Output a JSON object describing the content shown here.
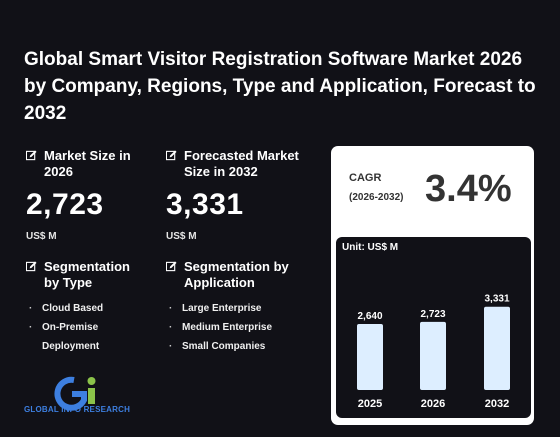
{
  "title": "Global Smart Visitor Registration Software Market 2026 by Company, Regions, Type and Application, Forecast to 2032",
  "market_size": {
    "label": "Market Size in 2026",
    "value": "2,723",
    "unit": "US$ M"
  },
  "forecast_size": {
    "label": "Forecasted Market Size in 2032",
    "value": "3,331",
    "unit": "US$ M"
  },
  "segmentation_type": {
    "label": "Segmentation by Type",
    "items": [
      "Cloud Based",
      "On-Premise Deployment"
    ]
  },
  "segmentation_application": {
    "label": "Segmentation by Application",
    "items": [
      "Large Enterprise",
      "Medium Enterprise",
      "Small Companies"
    ]
  },
  "cagr": {
    "label": "CAGR",
    "years": "(2026-2032)",
    "value": "3.4%"
  },
  "logo_text": "GLOBAL INFO RESEARCH",
  "colors": {
    "background": "#111117",
    "bar": "#ddeeff",
    "card": "#ffffff",
    "logo_blue": "#3d7fe0",
    "logo_green": "#8bc34a"
  },
  "icons": [
    "edit-icon"
  ],
  "chart_data": {
    "type": "bar",
    "unit_label": "Unit: US$ M",
    "categories": [
      "2025",
      "2026",
      "2032"
    ],
    "values": [
      2640,
      2723,
      3331
    ],
    "value_labels": [
      "2,640",
      "2,723",
      "3,331"
    ],
    "ylim": [
      0,
      3600
    ]
  }
}
